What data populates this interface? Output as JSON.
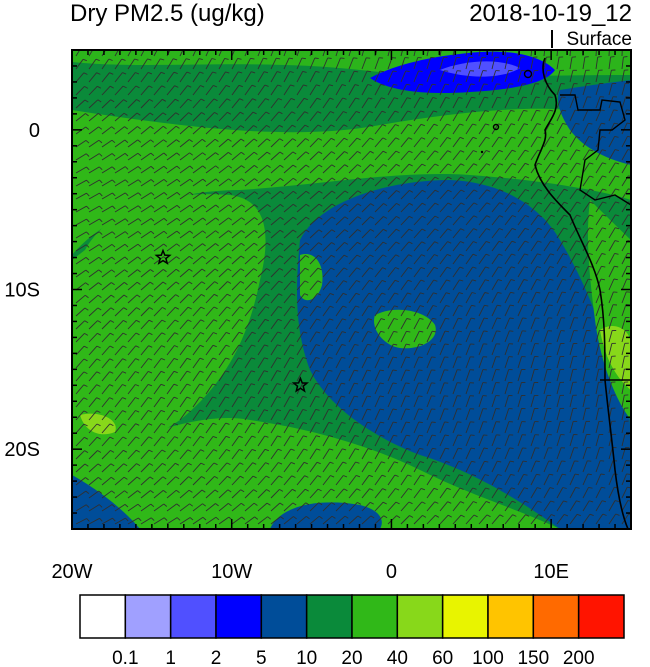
{
  "title": {
    "left": "Dry PM2.5 (ug/kg)",
    "right": "2018-10-19_12"
  },
  "level": "Surface",
  "axes": {
    "x_ticks": [
      {
        "lon": -20,
        "label": "20W"
      },
      {
        "lon": -10,
        "label": "10W"
      },
      {
        "lon": 0,
        "label": "0"
      },
      {
        "lon": 10,
        "label": "10E"
      }
    ],
    "y_ticks": [
      {
        "lat": 0,
        "label": "0"
      },
      {
        "lat": -10,
        "label": "10S"
      },
      {
        "lat": -20,
        "label": "20S"
      }
    ],
    "lon_range": [
      -20,
      15
    ],
    "lat_range": [
      -25,
      5
    ]
  },
  "markers": [
    {
      "type": "star",
      "lon": -14.3,
      "lat": -8.0
    },
    {
      "type": "star",
      "lon": -5.7,
      "lat": -16.0
    }
  ],
  "colorbar": {
    "colors": [
      "#ffffff",
      "#a0a0ff",
      "#5050ff",
      "#0000ff",
      "#004d99",
      "#0a8a3a",
      "#30b818",
      "#88d81a",
      "#e8f400",
      "#ffc400",
      "#ff6a00",
      "#ff1400"
    ],
    "labels": [
      "0.1",
      "1",
      "2",
      "5",
      "10",
      "20",
      "40",
      "60",
      "100",
      "150",
      "200"
    ]
  },
  "map_colors": {
    "bin_10_20": "#0a8a3a",
    "bin_20_40": "#30b818",
    "bin_5_10": "#004d99",
    "bin_2_5": "#0000ff",
    "bin_40_60": "#88d81a",
    "bin_60_100": "#e8f400",
    "wind_barb": "#303030",
    "coastline": "#000000"
  }
}
